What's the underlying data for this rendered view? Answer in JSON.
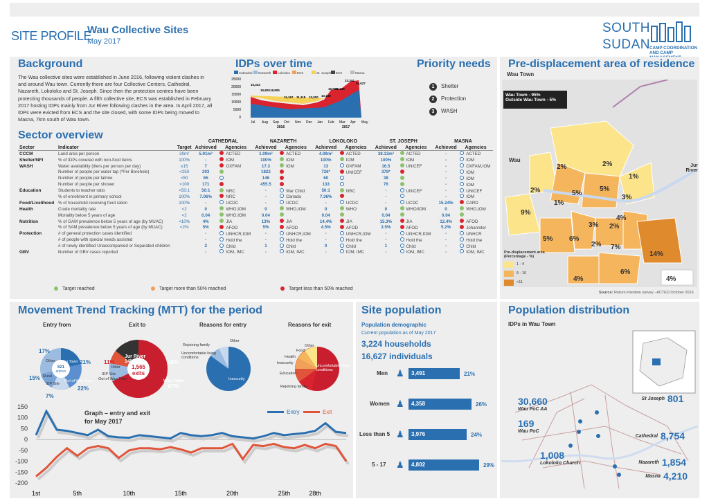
{
  "header": {
    "site_profile": "SITE PROFILE",
    "title": "Wau Collective Sites",
    "date": "May 2017",
    "country_line1": "SOUTH",
    "country_line2": "SUDAN",
    "tagline": "CAMP COORDINATION AND CAMP MANAGEMENT"
  },
  "background": {
    "title": "Background",
    "text": "The Wau collective sites were established in June 2016, following violent clashes in and around Wau town. Currently there are four Collective Centers, Cathedral, Nazareth, Lokoloko and St. Joseph. Since then the protection centres have been protecting thousands of people. A fifth collective site, ECS was established in February 2017 hosting IDPs mainly from Jur River following clashes in the area. In April 2017, all IDPs were evicted from ECS and the site closed, with some IDPs being moved to Masna, 7km south of Wau town."
  },
  "idps": {
    "title": "IDPs over time",
    "legend": [
      "Cathedral",
      "Nazareth",
      "Lokoloko",
      "ECS",
      "St. Joseph",
      "ECS",
      "Masna"
    ],
    "legend_colors": [
      "#2a6fb0",
      "#9bbbe0",
      "#d9232e",
      "#f0a05a",
      "#f5d35a",
      "#444444",
      "#bbbbbb"
    ],
    "yticks": [
      "25000",
      "20000",
      "15000",
      "10000",
      "5000",
      "0"
    ],
    "xticks": [
      "Jul",
      "Aug",
      "Sep",
      "Oct",
      "Nov",
      "Dec",
      "Jan",
      "Feb",
      "Mar",
      "Apr",
      "May"
    ],
    "years": [
      "2016",
      "2017"
    ],
    "labels": [
      "15,343",
      "19,809",
      "18,809",
      "11,167",
      "11,118",
      "10,000",
      "10,150",
      "16,507",
      "16,168",
      "23,344",
      "16,627"
    ]
  },
  "priority": {
    "title": "Priority needs",
    "items": [
      "Shelter",
      "Protection",
      "WASH"
    ]
  },
  "sector": {
    "title": "Sector overview",
    "groups": [
      "CATHEDRAL",
      "NAZARETH",
      "LOKOLOKO",
      "ST. JOSEPH",
      "MASNA"
    ],
    "headers": [
      "Sector",
      "Indicator",
      "Target",
      "Achieved",
      "Agencies",
      "Achieved",
      "Agencies",
      "Achieved",
      "Agencies",
      "Achieved",
      "Agencies",
      "Achieved",
      "Agencies"
    ],
    "rows": [
      [
        "CCCM",
        "Land area per person",
        "30m²",
        "5.91m²",
        "r",
        "ACTED",
        "1.09m²",
        "r",
        "ACTED",
        "4.09m²",
        "r",
        "ACTED",
        "38.13m²",
        "g",
        "ACTED",
        "-",
        "o",
        "ACTED"
      ],
      [
        "Shelter/NFI",
        "% of IDPs covered with non-food items",
        "100%",
        "-",
        "r",
        "IOM",
        "100%",
        "g",
        "IOM",
        "100%",
        "g",
        "IOM",
        "100%",
        "g",
        "IOM",
        "-",
        "o",
        "IOM"
      ],
      [
        "WASH",
        "Water availability (liters per person per day)",
        "≥15",
        "7",
        "r",
        "OXFAM",
        "17.3",
        "g",
        "IOM",
        "13",
        "o",
        "OXFAM",
        "16.5",
        "g",
        "UNICEF",
        "-",
        "o",
        "OXFAM,IOM"
      ],
      [
        "",
        "Number of people per water tap (*Per Borehole)",
        "<250",
        "203",
        "g",
        "",
        "1822",
        "r",
        "",
        "726*",
        "r",
        "UNICEF",
        "378*",
        "r",
        "",
        "-",
        "o",
        "IOM"
      ],
      [
        "",
        "Number of people per latrine",
        "<50",
        "65",
        "o",
        "",
        "146",
        "r",
        "",
        "60",
        "o",
        "",
        "38",
        "g",
        "",
        "-",
        "o",
        "IOM"
      ],
      [
        "",
        "Number of people per shower",
        "<100",
        "171",
        "r",
        "",
        "455.5",
        "r",
        "",
        "133",
        "o",
        "",
        "76",
        "g",
        "",
        "-",
        "o",
        "IOM"
      ],
      [
        "Education",
        "Students to teacher ratio",
        "<50:1",
        "50:1",
        "g",
        "NRC",
        "-",
        "o",
        "War Child",
        "50:1",
        "g",
        "NRC",
        "-",
        "o",
        "UNICEF",
        "-",
        "o",
        "UNICEF"
      ],
      [
        "",
        "% of enrollment in primary school",
        "100%",
        "7.06%",
        "r",
        "NRC",
        "-",
        "o",
        "Canada",
        "7.36%",
        "r",
        "",
        "-",
        "o",
        "",
        "-",
        "o",
        "IOM"
      ],
      [
        "Food/Livelihood",
        "% of household receiving food ration",
        "100%",
        "-",
        "o",
        "UCDC",
        "-",
        "o",
        "UCDC",
        "-",
        "o",
        "UCDC",
        "-",
        "o",
        "UCDC",
        "15.24%",
        "r",
        "CARD"
      ],
      [
        "Health",
        "Crude mortality rate",
        "<2",
        "0",
        "g",
        "WHO,IOM",
        "0",
        "g",
        "WHO,IOM",
        "0",
        "g",
        "WHO",
        "0",
        "g",
        "WHO/IOM",
        "0",
        "g",
        "WHO,IOM"
      ],
      [
        "",
        "Mortality below 5 years of age",
        "<2",
        "0.04",
        "g",
        "WHO,IOM",
        "0.04",
        "g",
        "",
        "0.04",
        "g",
        "",
        "0.04",
        "g",
        "",
        "0.04",
        "g",
        ""
      ],
      [
        "Nutrition",
        "% of GAM prevalence below 5 years of age (by MUAC)",
        "<10%",
        "4%",
        "g",
        "JIA",
        "13%",
        "r",
        "JIA",
        "14.4%",
        "r",
        "JIA",
        "15.3%",
        "r",
        "JIA",
        "12.4%",
        "r",
        "AFOD"
      ],
      [
        "",
        "% of SAM prevalence below 5 years of age (by MUAC)",
        "<2%",
        "5%",
        "r",
        "AFOD",
        "5%",
        "r",
        "AFOD",
        "4.5%",
        "r",
        "AFOD",
        "3.5%",
        "r",
        "AFOD",
        "5.2%",
        "r",
        "Johanniter"
      ],
      [
        "Protection",
        "# of general protection cases identified",
        "",
        "-",
        "o",
        "UNHCR,IOM",
        "-",
        "o",
        "UNHCR,IOM",
        "-",
        "o",
        "UNHCR,IOM",
        "-",
        "o",
        "UNHCR,IOM",
        "-",
        "o",
        "UNHCR"
      ],
      [
        "",
        "# of people with special needs assisted",
        "",
        "-",
        "o",
        "Hold the",
        "-",
        "o",
        "Hold the",
        "-",
        "o",
        "Hold the",
        "-",
        "o",
        "Hold the",
        "-",
        "o",
        "Hold the"
      ],
      [
        "",
        "# of newly identified Unaccompanied or Separated children",
        "",
        "2",
        "o",
        "Child",
        "1",
        "o",
        "Child",
        "0",
        "o",
        "Child",
        "1",
        "o",
        "Child",
        "-",
        "o",
        "Child"
      ],
      [
        "GBV",
        "Number of GBV cases reported",
        "",
        "-",
        "o",
        "IOM, IMC",
        "-",
        "o",
        "IOM, IMC",
        "-",
        "o",
        "IOM, IMC",
        "-",
        "o",
        "IOM, IMC",
        "-",
        "o",
        "IOM, IMC"
      ]
    ],
    "legend": [
      "Target reached",
      "Target more than 50% reached",
      "Target less than 50% reached"
    ]
  },
  "mtt": {
    "title": "Movement Trend Tracking (MTT) for the period",
    "entry_from": "Entry from",
    "exit_to": "Exit to",
    "reasons_entry": "Reasons for entry",
    "reasons_exit": "Reasons for exit",
    "entry_pcts": [
      "17%",
      "21%",
      "15%",
      "22%",
      "7%"
    ],
    "entry_labels": [
      "Other",
      "Wau Town",
      "Rural",
      "Out of Wau Town",
      "IDP Site"
    ],
    "entry_center": "821",
    "entry_center2": "entries",
    "exit_pcts": [
      "14%",
      "11%",
      "38%",
      "67%"
    ],
    "exit_labels": [
      "Jur River",
      "Other",
      "IDP Site",
      "Out of Wau Town",
      "Wau Town"
    ],
    "exit_center": "1,565",
    "exit_center2": "exits",
    "re_labels": [
      "Rejoining family",
      "Other",
      "Uncomfortable living conditions",
      "Insecurity"
    ],
    "rx_labels": [
      "Food",
      "Health",
      "Insecurity",
      "Education",
      "Rejoining family",
      "Uncomfortable living conditions",
      "Other"
    ],
    "graph_title": "Graph – entry and exit",
    "graph_sub": "for May 2017",
    "legend_entry": "Entry",
    "legend_exit": "Exit",
    "yticks": [
      "150",
      "100",
      "50",
      "0",
      "-50",
      "-100",
      "-150",
      "-200"
    ],
    "xticks": [
      "1st",
      "5th",
      "10th",
      "15th",
      "20th",
      "25th",
      "28th"
    ]
  },
  "chart_data": [
    {
      "type": "line",
      "title": "Graph – entry and exit",
      "x": [
        "1st",
        "2nd",
        "3rd",
        "4th",
        "5th",
        "6th",
        "7th",
        "8th",
        "9th",
        "10th",
        "11th",
        "12th",
        "13th",
        "14th",
        "15th",
        "16th",
        "17th",
        "18th",
        "19th",
        "20th",
        "21st",
        "22nd",
        "23rd",
        "24th",
        "25th",
        "26th",
        "27th",
        "28th",
        "29th",
        "30th",
        "31st"
      ],
      "series": [
        {
          "name": "Entry",
          "color": "#2a6fb0",
          "values": [
            20,
            130,
            45,
            40,
            30,
            20,
            45,
            15,
            10,
            8,
            20,
            15,
            10,
            5,
            30,
            20,
            15,
            20,
            30,
            15,
            10,
            5,
            15,
            30,
            20,
            25,
            30,
            40,
            75,
            35,
            30
          ]
        },
        {
          "name": "Exit",
          "color": "#e0553a",
          "values": [
            -170,
            -130,
            -80,
            -40,
            -75,
            -40,
            -30,
            -40,
            -85,
            -50,
            -40,
            -40,
            -45,
            -35,
            -45,
            -60,
            -40,
            -40,
            -40,
            -20,
            -90,
            -25,
            -30,
            -20,
            -35,
            -40,
            -25,
            -40,
            -20,
            -30,
            -100
          ]
        }
      ],
      "ylim": [
        -200,
        150
      ]
    }
  ],
  "sitepop": {
    "title": "Site population",
    "subtitle": "Population demographic",
    "asof": "Current population as of May 2017",
    "households": "3,224 households",
    "individuals": "16,627 individuals",
    "rows": [
      {
        "label": "Men",
        "value": "3,491",
        "pct": "21%",
        "frac": 0.21
      },
      {
        "label": "Women",
        "value": "4,358",
        "pct": "26%",
        "frac": 0.26
      },
      {
        "label": "Less than 5",
        "value": "3,976",
        "pct": "24%",
        "frac": 0.24
      },
      {
        "label": "5 - 17",
        "value": "4,802",
        "pct": "29%",
        "frac": 0.29
      }
    ]
  },
  "predisp": {
    "title": "Pre-displacement area of residence",
    "subtitle": "Wau Town",
    "box1": "Wau Town - 95%",
    "box2": "Outside Wau Town - 5%",
    "wau": "Wau",
    "jur": "Jur River",
    "legend_title": "Pre-displacement area (Percentage - %)",
    "legend": [
      "1 - 4",
      "5 - 10",
      ">11"
    ],
    "source_label": "Source:",
    "source": "Return intention survey - ACTED October 2016",
    "pcts": [
      "2%",
      "2%",
      "1%",
      "2%",
      "1%",
      "5%",
      "5%",
      "9%",
      "3%",
      "3%",
      "2%",
      "4%",
      "5%",
      "6%",
      "2%",
      "7%",
      "14%",
      "4%",
      "6%",
      "4%"
    ]
  },
  "popdist": {
    "title": "Population distribution",
    "subtitle": "IDPs in Wau Town",
    "sites": [
      {
        "num": "30,660",
        "name": "Wau PoC AA"
      },
      {
        "num": "169",
        "name": "Wau PoC"
      },
      {
        "num": "801",
        "name": "St Joseph"
      },
      {
        "num": "8,754",
        "name": "Cathedral"
      },
      {
        "num": "1,008",
        "name": "Lokoloko Church"
      },
      {
        "num": "1,854",
        "name": "Nazareth"
      },
      {
        "num": "4,210",
        "name": "Masna"
      }
    ]
  }
}
